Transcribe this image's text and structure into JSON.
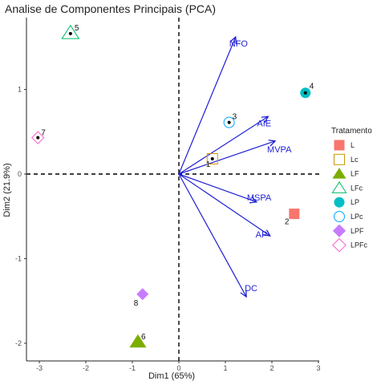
{
  "chart_data": {
    "type": "scatter",
    "subtype": "pca-biplot",
    "title": "Analise de Componentes Principais (PCA)",
    "xlabel": "Dim1 (65%)",
    "ylabel": "Dim2 (21.9%)",
    "xlim": [
      -3.2,
      3.0
    ],
    "ylim": [
      -2.2,
      1.85
    ],
    "xticks": [
      -3,
      -2,
      -1,
      0,
      1,
      2,
      3
    ],
    "yticks": [
      -2,
      -1,
      0,
      1
    ],
    "grid": false,
    "reference_lines": {
      "x": 0,
      "y": 0,
      "style": "dashed"
    },
    "legend": {
      "title": "Tratamento",
      "position": "right",
      "entries": [
        {
          "name": "L",
          "shape": "square-filled",
          "color": "#f8766d"
        },
        {
          "name": "Lc",
          "shape": "square-open",
          "color": "#cd9600"
        },
        {
          "name": "LF",
          "shape": "triangle-filled",
          "color": "#7cae00"
        },
        {
          "name": "LFc",
          "shape": "triangle-open",
          "color": "#00be67"
        },
        {
          "name": "LP",
          "shape": "circle-filled",
          "color": "#00bfc4"
        },
        {
          "name": "LPc",
          "shape": "circle-open",
          "color": "#00a9ff"
        },
        {
          "name": "LPF",
          "shape": "diamond-filled",
          "color": "#c77cff"
        },
        {
          "name": "LPFc",
          "shape": "diamond-open",
          "color": "#ff61cc"
        }
      ]
    },
    "individuals": [
      {
        "label": "1",
        "treatment": "Lc",
        "x": 0.72,
        "y": 0.18
      },
      {
        "label": "2",
        "treatment": "L",
        "x": 2.48,
        "y": -0.47
      },
      {
        "label": "3",
        "treatment": "LPc",
        "x": 1.08,
        "y": 0.61
      },
      {
        "label": "4",
        "treatment": "LP",
        "x": 2.72,
        "y": 0.96
      },
      {
        "label": "5",
        "treatment": "LFc",
        "x": -2.33,
        "y": 1.67
      },
      {
        "label": "6",
        "treatment": "LF",
        "x": -0.88,
        "y": -1.98
      },
      {
        "label": "7",
        "treatment": "LPFc",
        "x": -3.03,
        "y": 0.43
      },
      {
        "label": "8",
        "treatment": "LPF",
        "x": -0.78,
        "y": -1.42
      }
    ],
    "variables": [
      {
        "name": "NFO",
        "x": 1.22,
        "y": 1.62
      },
      {
        "name": "AIE",
        "x": 1.92,
        "y": 0.68
      },
      {
        "name": "MVPA",
        "x": 2.07,
        "y": 0.39
      },
      {
        "name": "MSPA",
        "x": 1.67,
        "y": -0.33
      },
      {
        "name": "AP",
        "x": 1.96,
        "y": -0.73
      },
      {
        "name": "DC",
        "x": 1.45,
        "y": -1.45
      }
    ],
    "centroid_markers": [
      "1",
      "3",
      "4",
      "5",
      "7"
    ],
    "vector_color": "#1f1fd6"
  }
}
